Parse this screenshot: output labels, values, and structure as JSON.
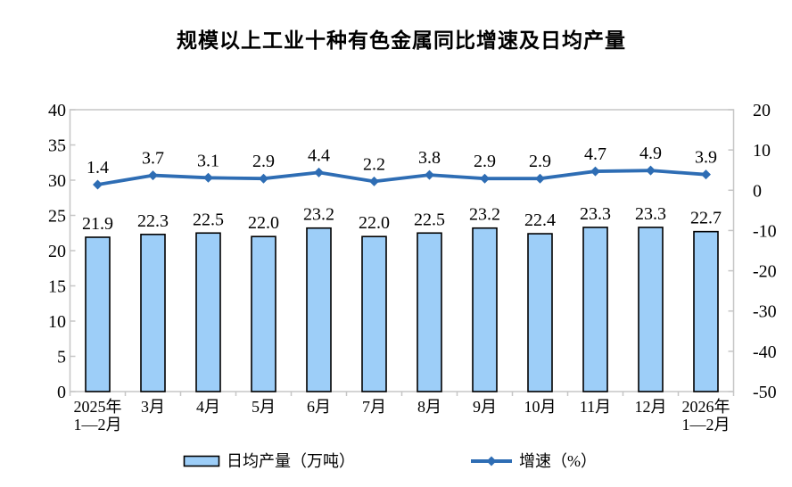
{
  "chart_data": {
    "type": "bar+line",
    "title": "规模以上工业十种有色金属同比增速及日均产量",
    "categories": [
      "2025年1—2月",
      "3月",
      "4月",
      "5月",
      "6月",
      "7月",
      "8月",
      "9月",
      "10月",
      "11月",
      "12月",
      "2026年1—2月"
    ],
    "category_lines": [
      [
        "2025年",
        "1—2月"
      ],
      [
        "3月"
      ],
      [
        "4月"
      ],
      [
        "5月"
      ],
      [
        "6月"
      ],
      [
        "7月"
      ],
      [
        "8月"
      ],
      [
        "9月"
      ],
      [
        "10月"
      ],
      [
        "11月"
      ],
      [
        "12月"
      ],
      [
        "2026年",
        "1—2月"
      ]
    ],
    "series": [
      {
        "name": "日均产量（万吨）",
        "type": "bar",
        "axis": "left",
        "values": [
          21.9,
          22.3,
          22.5,
          22.0,
          23.2,
          22.0,
          22.5,
          23.2,
          22.4,
          23.3,
          23.3,
          22.7
        ]
      },
      {
        "name": "增速（%）",
        "type": "line",
        "axis": "right",
        "values": [
          1.4,
          3.7,
          3.1,
          2.9,
          4.4,
          2.2,
          3.8,
          2.9,
          2.9,
          4.7,
          4.9,
          3.9
        ]
      }
    ],
    "y_axis_left": {
      "min": 0,
      "max": 40,
      "step": 5,
      "ticks": [
        40,
        35,
        30,
        25,
        20,
        15,
        10,
        5,
        0
      ]
    },
    "y_axis_right": {
      "min": -50,
      "max": 20,
      "step": 10,
      "ticks": [
        20,
        10,
        0,
        -10,
        -20,
        -30,
        -40,
        -50
      ]
    },
    "grid": false,
    "data_labels": true,
    "legend_position": "bottom"
  },
  "colors": {
    "bar_fill": "#9DCEF8",
    "bar_stroke": "#000000",
    "line": "#2E6DB4",
    "axis": "#C6C6C6",
    "text": "#000000"
  }
}
